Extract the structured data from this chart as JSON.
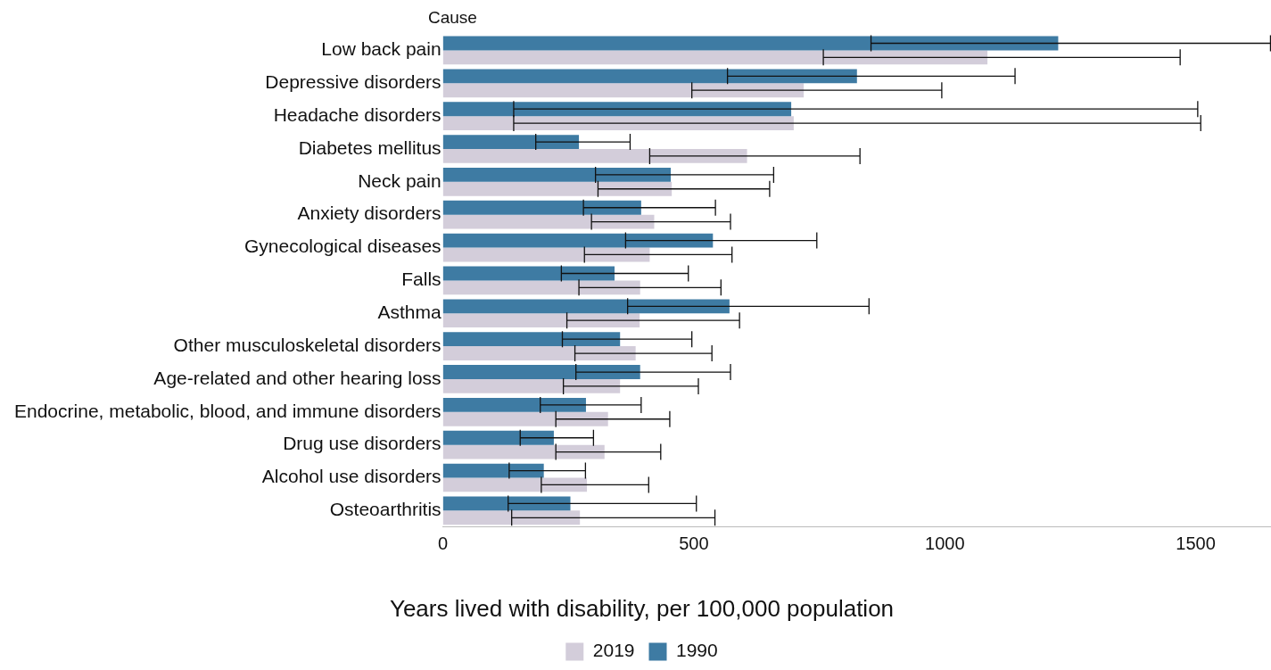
{
  "chart_data": {
    "type": "bar",
    "orientation": "horizontal",
    "ylabel": "Cause",
    "legend_title": "Years lived with disability, per 100,000 population",
    "categories": [
      "Low back pain",
      "Depressive disorders",
      "Headache disorders",
      "Diabetes mellitus",
      "Neck pain",
      "Anxiety disorders",
      "Gynecological diseases",
      "Falls",
      "Asthma",
      "Other musculoskeletal disorders",
      "Age-related and other hearing loss",
      "Endocrine, metabolic, blood, and immune disorders",
      "Drug use disorders",
      "Alcohol use disorders",
      "Osteoarthritis"
    ],
    "series": [
      {
        "name": "1990",
        "color": "#3e7ba3",
        "values": [
          1226,
          825,
          694,
          271,
          454,
          395,
          538,
          342,
          571,
          353,
          393,
          285,
          221,
          201,
          254
        ],
        "errors": [
          [
            853,
            1649
          ],
          [
            567,
            1140
          ],
          [
            141,
            1504
          ],
          [
            185,
            373
          ],
          [
            304,
            659
          ],
          [
            280,
            543
          ],
          [
            364,
            745
          ],
          [
            236,
            489
          ],
          [
            368,
            849
          ],
          [
            238,
            496
          ],
          [
            265,
            573
          ],
          [
            194,
            395
          ],
          [
            154,
            300
          ],
          [
            132,
            284
          ],
          [
            130,
            505
          ]
        ]
      },
      {
        "name": "2019",
        "color": "#d3cdda",
        "values": [
          1085,
          719,
          699,
          606,
          456,
          421,
          412,
          393,
          392,
          384,
          353,
          329,
          322,
          287,
          273
        ],
        "errors": [
          [
            758,
            1469
          ],
          [
            496,
            994
          ],
          [
            141,
            1510
          ],
          [
            412,
            831
          ],
          [
            309,
            651
          ],
          [
            296,
            573
          ],
          [
            282,
            576
          ],
          [
            271,
            554
          ],
          [
            247,
            591
          ],
          [
            263,
            536
          ],
          [
            240,
            509
          ],
          [
            225,
            452
          ],
          [
            225,
            434
          ],
          [
            196,
            410
          ],
          [
            137,
            542
          ]
        ]
      }
    ],
    "xlim": [
      0,
      1650
    ],
    "xticks": [
      0,
      500,
      1000,
      1500
    ],
    "grid": false,
    "legend": "bottom"
  }
}
